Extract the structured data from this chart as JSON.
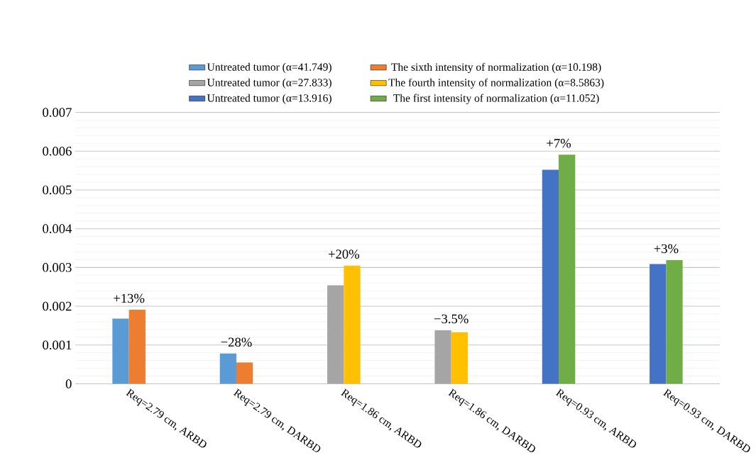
{
  "chart_data": {
    "type": "bar",
    "categories": [
      "Req=2.79 cm, ARBD",
      "Req=2.79 cm, DARBD",
      "Req=1.86 cm, ARBD",
      "Req=1.86 cm, DARBD",
      "Req=0.93 cm, ARBD",
      "Req=0.93 cm, DARBD"
    ],
    "series": [
      {
        "name": "Untreated tumor (α=41.749)",
        "color": "#5b9bd5",
        "values": [
          0.00168,
          0.00078,
          null,
          null,
          null,
          null
        ]
      },
      {
        "name": "The sixth intensity of normalization (α=10.198)",
        "color": "#ed7d31",
        "values": [
          0.00191,
          0.00055,
          null,
          null,
          null,
          null
        ]
      },
      {
        "name": "Untreated tumor (α=27.833)",
        "color": "#a5a5a5",
        "values": [
          null,
          null,
          0.00254,
          0.00138,
          null,
          null
        ]
      },
      {
        "name": "The fourth intensity of normalization (α=8.5863)",
        "color": "#ffc000",
        "values": [
          null,
          null,
          0.00305,
          0.00133,
          null,
          null
        ]
      },
      {
        "name": "Untreated tumor (α=13.916)",
        "color": "#4472c4",
        "values": [
          null,
          null,
          null,
          null,
          0.00552,
          0.00309
        ]
      },
      {
        "name": "The first intensity of normalization (α=11.052)",
        "color": "#70ad47",
        "values": [
          null,
          null,
          null,
          null,
          0.00591,
          0.00319
        ]
      }
    ],
    "ylim": [
      0,
      0.007
    ],
    "yticks": [
      0,
      0.001,
      0.002,
      0.003,
      0.004,
      0.005,
      0.006,
      0.007
    ],
    "grid": "y",
    "legend": "top",
    "annotations": [
      {
        "text": "+13%",
        "x": "Req=2.79 cm, ARBD",
        "y": 0.00191
      },
      {
        "text": "−28%",
        "x": "Req=2.79 cm, DARBD",
        "y": 0.00078
      },
      {
        "text": "+20%",
        "x": "Req=1.86 cm, ARBD",
        "y": 0.00305
      },
      {
        "text": "−3.5%",
        "x": "Req=1.86 cm, DARBD",
        "y": 0.00138
      },
      {
        "text": "+7%",
        "x": "Req=0.93 cm, ARBD",
        "y": 0.00591
      },
      {
        "text": "+3%",
        "x": "Req=0.93 cm, DARBD",
        "y": 0.00319
      }
    ]
  }
}
